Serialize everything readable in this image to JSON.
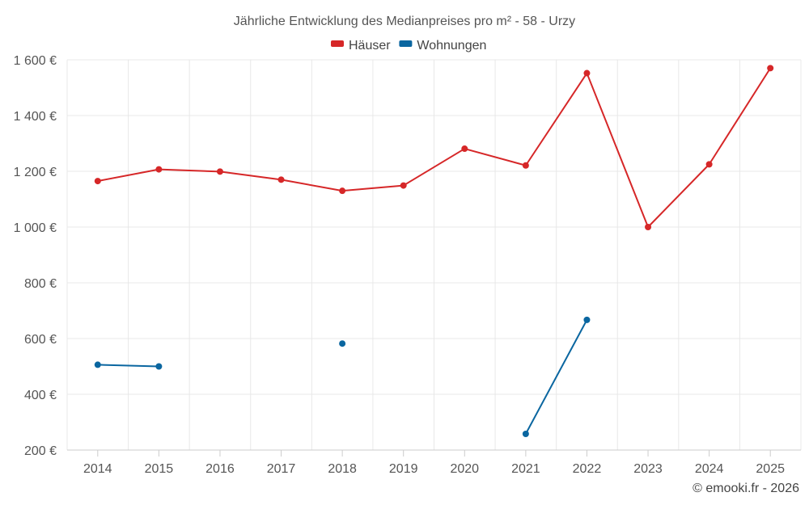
{
  "chart_data": {
    "type": "line",
    "title": "Jährliche Entwicklung des Medianpreises pro m² - 58 - Urzy",
    "categories": [
      "2014",
      "2015",
      "2016",
      "2017",
      "2018",
      "2019",
      "2020",
      "2021",
      "2022",
      "2023",
      "2024",
      "2025"
    ],
    "y_ticks": [
      200,
      400,
      600,
      800,
      1000,
      1200,
      1400,
      1600
    ],
    "y_tick_labels": [
      "200 €",
      "400 €",
      "600 €",
      "800 €",
      "1 000 €",
      "1 200 €",
      "1 400 €",
      "1 600 €"
    ],
    "ylim": [
      200,
      1600
    ],
    "legend_position": "top-center",
    "series": [
      {
        "name": "Häuser",
        "color": "#d62728",
        "values": [
          1165,
          1207,
          1199,
          1170,
          1130,
          1149,
          1281,
          1221,
          1552,
          1000,
          1225,
          1570
        ]
      },
      {
        "name": "Wohnungen",
        "color": "#0a66a0",
        "values": [
          506,
          500,
          null,
          null,
          582,
          null,
          null,
          258,
          667,
          null,
          null,
          null
        ]
      }
    ],
    "credit": "© emooki.fr - 2026"
  }
}
